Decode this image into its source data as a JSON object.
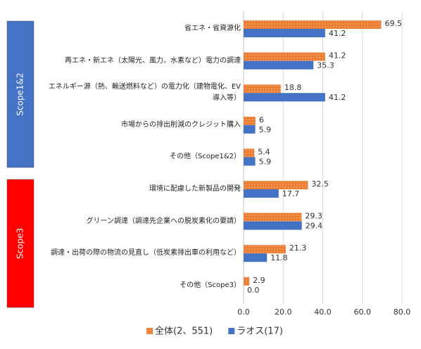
{
  "chart_data": {
    "type": "bar",
    "orientation": "horizontal",
    "categories": [
      "省エネ・省資源化",
      "再エネ・新エネ（太陽光、風力、水素など）電力の調達",
      "エネルギー源（熱、輸送燃料など）の電力化（建物電化、EV導入等）",
      "市場からの排出削減のクレジット購入",
      "その他（Scope1&2）",
      "環境に配慮した新製品の開発",
      "グリーン調達（調達先企業への脱炭素化の要請）",
      "調達・出荷の際の物流の見直し（低炭素排出車の利用など）",
      "その他（Scope3）"
    ],
    "series": [
      {
        "name": "全体(2、551)",
        "color": "#ed7d31",
        "values": [
          69.5,
          41.2,
          18.8,
          6,
          5.4,
          32.5,
          29.3,
          21.3,
          2.9
        ],
        "value_labels": [
          "69.5",
          "41.2",
          "18.8",
          "6",
          "5.4",
          "32.5",
          "29.3",
          "21.3",
          "2.9"
        ]
      },
      {
        "name": "ラオス(17)",
        "color": "#4472c4",
        "values": [
          41.2,
          35.3,
          41.2,
          5.9,
          5.9,
          17.7,
          29.4,
          11.8,
          0
        ],
        "value_labels": [
          "41.2",
          "35.3",
          "41.2",
          "5.9",
          "5.9",
          "17.7",
          "29.4",
          "11.8",
          "0.0"
        ]
      }
    ],
    "groups": [
      {
        "label": "Scope1&2",
        "color": "#4472c4"
      },
      {
        "label": "Scope3",
        "color": "#ff0000"
      }
    ],
    "xlim": [
      0,
      80
    ],
    "xticks": [
      {
        "value": 0,
        "label": "0.0"
      },
      {
        "value": 20,
        "label": "20.0"
      },
      {
        "value": 40,
        "label": "40.0"
      },
      {
        "value": 60,
        "label": "60.0"
      },
      {
        "value": 80,
        "label": "80.0"
      }
    ],
    "grid": true
  }
}
